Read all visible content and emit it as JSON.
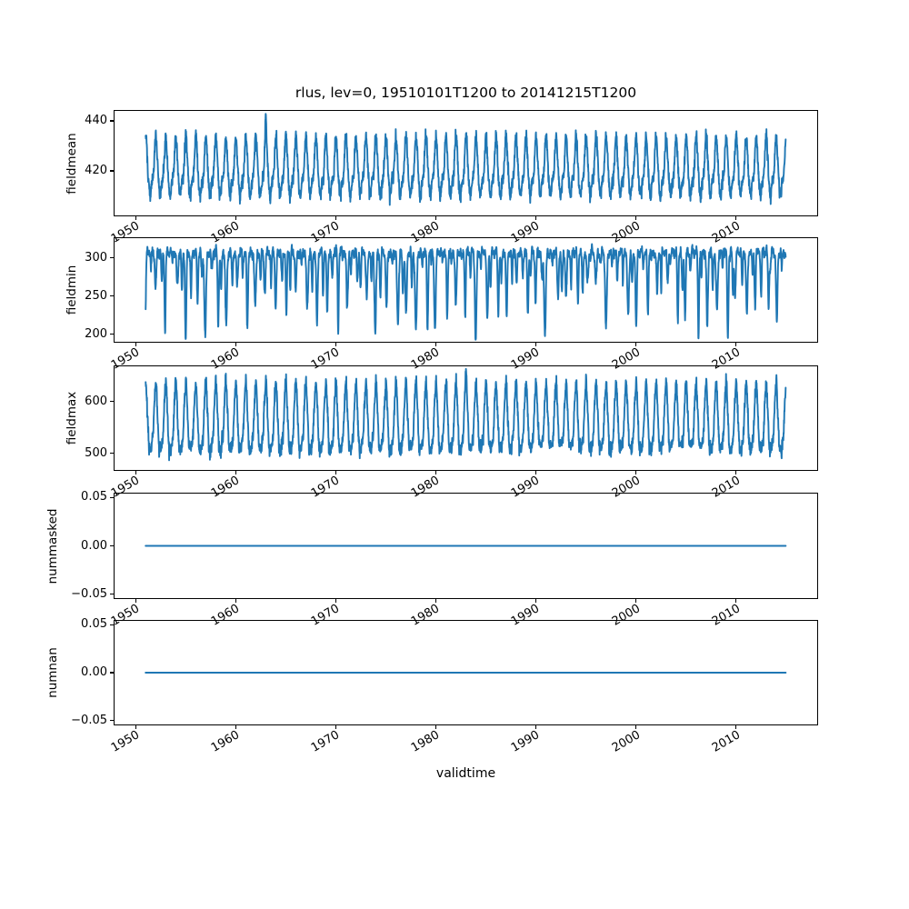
{
  "figure": {
    "title": "rlus, lev=0, 19510101T1200 to 20141215T1200",
    "xlabel": "validtime",
    "line_color": "#1f77b4",
    "background": "#ffffff",
    "spine_color": "#000000"
  },
  "chart_data": [
    {
      "type": "line",
      "name": "fieldmean",
      "ylabel": "fieldmean",
      "line_color": "#1f77b4",
      "xlim": [
        1947.8,
        2018.2
      ],
      "ylim": [
        401.8,
        444.4
      ],
      "x_data_range": [
        1951.0,
        2014.96
      ],
      "xticks": [
        1950,
        1960,
        1970,
        1980,
        1990,
        2000,
        2010
      ],
      "xtick_labels": [
        "1950",
        "1960",
        "1970",
        "1980",
        "1990",
        "2000",
        "2010"
      ],
      "yticks": [
        420,
        440
      ],
      "ytick_labels": [
        "420",
        "440"
      ],
      "n_points": 3328,
      "summary": "Seasonal oscillation of field mean between ~406 and ~436, mean ~420, with one anomalous spike to ~443 near 1963.",
      "synth": {
        "kind": "harmonic",
        "seed": 101,
        "base": 420.3,
        "harmonics": [
          {
            "f": 1,
            "a": 10.5,
            "p": 1.57
          },
          {
            "f": 2,
            "a": 2.8,
            "p": 0.9
          },
          {
            "f": 3,
            "a": 1.0,
            "p": 2.1
          }
        ],
        "noise": 1.35,
        "spikes": [
          {
            "t": 1963.0,
            "a": 9.5,
            "w": 0.06
          }
        ],
        "clamp": [
          405.2,
          442.6
        ]
      }
    },
    {
      "type": "line",
      "name": "fieldmin",
      "ylabel": "fieldmin",
      "line_color": "#1f77b4",
      "xlim": [
        1947.8,
        2018.2
      ],
      "ylim": [
        188.7,
        326.8
      ],
      "x_data_range": [
        1951.0,
        2014.96
      ],
      "xticks": [
        1950,
        1960,
        1970,
        1980,
        1990,
        2000,
        2010
      ],
      "xtick_labels": [
        "1950",
        "1960",
        "1970",
        "1980",
        "1990",
        "2000",
        "2010"
      ],
      "yticks": [
        200,
        250,
        300
      ],
      "ytick_labels": [
        "200",
        "250",
        "300"
      ],
      "n_points": 3328,
      "summary": "Field minimum stays in a dense band near 295-320 with sharp downward spikes once or twice a year reaching ~195-260.",
      "synth": {
        "kind": "dips",
        "seed": 202,
        "top": 308,
        "band": [
          {
            "f": 2,
            "a": 4.0,
            "p": 0.5
          },
          {
            "f": 7,
            "a": 2.6,
            "p": 0.0
          }
        ],
        "noise": 2.2,
        "dips": [
          {
            "off": 0.08,
            "jit": 0.18,
            "w": 0.095,
            "dmin": 40,
            "dmax": 108
          },
          {
            "off": 0.58,
            "jit": 0.15,
            "w": 0.07,
            "dmin": 8,
            "dmax": 62
          }
        ],
        "clamp": [
          194.5,
          319.5
        ]
      }
    },
    {
      "type": "line",
      "name": "fieldmax",
      "ylabel": "fieldmax",
      "line_color": "#1f77b4",
      "xlim": [
        1947.8,
        2018.2
      ],
      "ylim": [
        466.0,
        670.0
      ],
      "x_data_range": [
        1951.0,
        2014.96
      ],
      "xticks": [
        1950,
        1960,
        1970,
        1980,
        1990,
        2000,
        2010
      ],
      "xtick_labels": [
        "1950",
        "1960",
        "1970",
        "1980",
        "1990",
        "2000",
        "2010"
      ],
      "yticks": [
        500,
        600
      ],
      "ytick_labels": [
        "500",
        "600"
      ],
      "n_points": 3328,
      "summary": "Field maximum oscillates seasonally between ~478 and ~650 with a tallest spike to ~663 near 1983; troughs lifted to ~515-545 around 1990-1994 and 2004-2007.",
      "synth": {
        "kind": "harmonic",
        "seed": 303,
        "base": 557,
        "harmonics": [
          {
            "f": 1,
            "a": 63,
            "p": 1.57
          },
          {
            "f": 2,
            "a": 16,
            "p": 1.3
          },
          {
            "f": 5,
            "a": 4,
            "p": 0.4
          }
        ],
        "noise": 6.5,
        "spikes": [
          {
            "t": 1983.0,
            "a": 26,
            "w": 0.07
          }
        ],
        "clamp": [
          474.5,
          661.5
        ],
        "floor_eras": [
          {
            "t0": 1990.3,
            "t1": 1994.2,
            "floor": 516,
            "fnoise": 4
          },
          {
            "t0": 2003.5,
            "t1": 2006.8,
            "floor": 516,
            "fnoise": 4
          }
        ]
      }
    },
    {
      "type": "line",
      "name": "nummasked",
      "ylabel": "nummasked",
      "line_color": "#1f77b4",
      "xlim": [
        1947.8,
        2018.2
      ],
      "ylim": [
        -0.055,
        0.055
      ],
      "x_data_range": [
        1951.0,
        2014.96
      ],
      "xticks": [
        1950,
        1960,
        1970,
        1980,
        1990,
        2000,
        2010
      ],
      "xtick_labels": [
        "1950",
        "1960",
        "1970",
        "1980",
        "1990",
        "2000",
        "2010"
      ],
      "yticks": [
        -0.05,
        0.0,
        0.05
      ],
      "ytick_labels": [
        "−0.05",
        "0.00",
        "0.05"
      ],
      "n_points": 2,
      "summary": "Constant zero masked-point count for the whole period.",
      "synth": {
        "kind": "constant",
        "value": 0
      }
    },
    {
      "type": "line",
      "name": "numnan",
      "ylabel": "numnan",
      "line_color": "#1f77b4",
      "xlim": [
        1947.8,
        2018.2
      ],
      "ylim": [
        -0.055,
        0.055
      ],
      "x_data_range": [
        1951.0,
        2014.96
      ],
      "xticks": [
        1950,
        1960,
        1970,
        1980,
        1990,
        2000,
        2010
      ],
      "xtick_labels": [
        "1950",
        "1960",
        "1970",
        "1980",
        "1990",
        "2000",
        "2010"
      ],
      "yticks": [
        -0.05,
        0.0,
        0.05
      ],
      "ytick_labels": [
        "−0.05",
        "0.00",
        "0.05"
      ],
      "n_points": 2,
      "summary": "Constant zero NaN count for the whole period.",
      "synth": {
        "kind": "constant",
        "value": 0
      }
    }
  ]
}
